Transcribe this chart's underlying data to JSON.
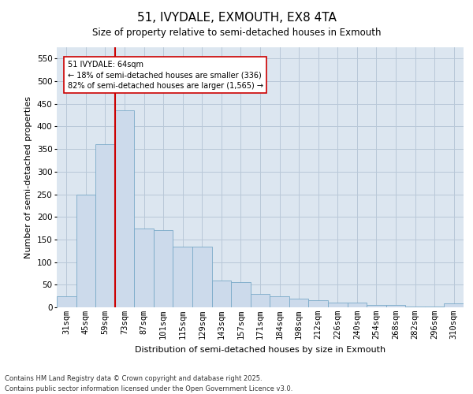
{
  "title": "51, IVYDALE, EXMOUTH, EX8 4TA",
  "subtitle": "Size of property relative to semi-detached houses in Exmouth",
  "xlabel": "Distribution of semi-detached houses by size in Exmouth",
  "ylabel": "Number of semi-detached properties",
  "categories": [
    "31sqm",
    "45sqm",
    "59sqm",
    "73sqm",
    "87sqm",
    "101sqm",
    "115sqm",
    "129sqm",
    "143sqm",
    "157sqm",
    "171sqm",
    "184sqm",
    "198sqm",
    "212sqm",
    "226sqm",
    "240sqm",
    "254sqm",
    "268sqm",
    "282sqm",
    "296sqm",
    "310sqm"
  ],
  "values": [
    25,
    250,
    360,
    435,
    175,
    170,
    135,
    135,
    60,
    55,
    30,
    25,
    20,
    15,
    10,
    10,
    5,
    5,
    2,
    2,
    8
  ],
  "bar_color": "#ccdaeb",
  "bar_edge_color": "#7aaac8",
  "grid_color": "#b8c8d8",
  "background_color": "#dce6f0",
  "vline_color": "#cc0000",
  "vline_index": 2.5,
  "annotation_text": "51 IVYDALE: 64sqm\n← 18% of semi-detached houses are smaller (336)\n82% of semi-detached houses are larger (1,565) →",
  "annotation_box_color": "#ffffff",
  "annotation_box_edge": "#cc0000",
  "footer_text": "Contains HM Land Registry data © Crown copyright and database right 2025.\nContains public sector information licensed under the Open Government Licence v3.0.",
  "ylim": [
    0,
    575
  ],
  "yticks": [
    0,
    50,
    100,
    150,
    200,
    250,
    300,
    350,
    400,
    450,
    500,
    550
  ],
  "title_fontsize": 11,
  "label_fontsize": 8,
  "tick_fontsize": 7.5,
  "annotation_fontsize": 7,
  "footer_fontsize": 6
}
